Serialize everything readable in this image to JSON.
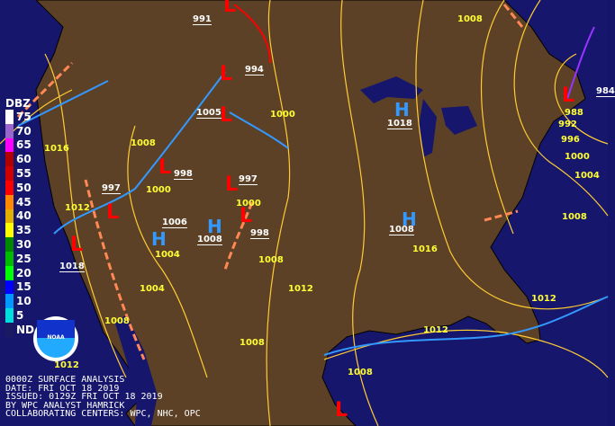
{
  "colors": {
    "ocean": "#16166c",
    "land": "#5c4126",
    "isobar": "#ffcc33",
    "low": "#ff0000",
    "high": "#3399ff",
    "trough": "#ff8855"
  },
  "legend": {
    "title": "DBZ",
    "items": [
      {
        "value": "75",
        "color": "#ffffff"
      },
      {
        "value": "70",
        "color": "#9966cc"
      },
      {
        "value": "65",
        "color": "#ff00ff"
      },
      {
        "value": "60",
        "color": "#b00000"
      },
      {
        "value": "55",
        "color": "#d00000"
      },
      {
        "value": "50",
        "color": "#ff0000"
      },
      {
        "value": "45",
        "color": "#ff8800"
      },
      {
        "value": "40",
        "color": "#e0b000"
      },
      {
        "value": "35",
        "color": "#ffff00"
      },
      {
        "value": "30",
        "color": "#008800"
      },
      {
        "value": "25",
        "color": "#00bb00"
      },
      {
        "value": "20",
        "color": "#00ff00"
      },
      {
        "value": "15",
        "color": "#0000ff"
      },
      {
        "value": "10",
        "color": "#0099ff"
      },
      {
        "value": "5",
        "color": "#00dddd"
      },
      {
        "value": "ND",
        "color": "#1a1a60"
      }
    ]
  },
  "logo": {
    "text": "NOAA"
  },
  "info": {
    "line1": "0000Z SURFACE ANALYSIS",
    "line2": "DATE: FRI OCT 18 2019",
    "line3": "ISSUED: 0129Z FRI OCT 18 2019",
    "line4": "BY WPC ANALYST HAMRICK",
    "line5": "COLLABORATING CENTERS: WPC, NHC, OPC"
  },
  "centers": {
    "pressures": [
      "991",
      "994",
      "1005",
      "1018",
      "998",
      "997",
      "997",
      "1006",
      "1008",
      "998",
      "1008",
      "1018",
      "984"
    ],
    "lows": [
      "L",
      "L",
      "L",
      "L",
      "L",
      "L",
      "L",
      "L",
      "L",
      "L"
    ],
    "highs": [
      "H",
      "H",
      "H",
      "H"
    ]
  },
  "isobar_labels": [
    "1008",
    "1000",
    "988",
    "992",
    "996",
    "1000",
    "1004",
    "1008",
    "1016",
    "1008",
    "1000",
    "1000",
    "1012",
    "1004",
    "1016",
    "1008",
    "1004",
    "1012",
    "1008",
    "1008",
    "1012",
    "1012",
    "1008",
    "1012"
  ]
}
